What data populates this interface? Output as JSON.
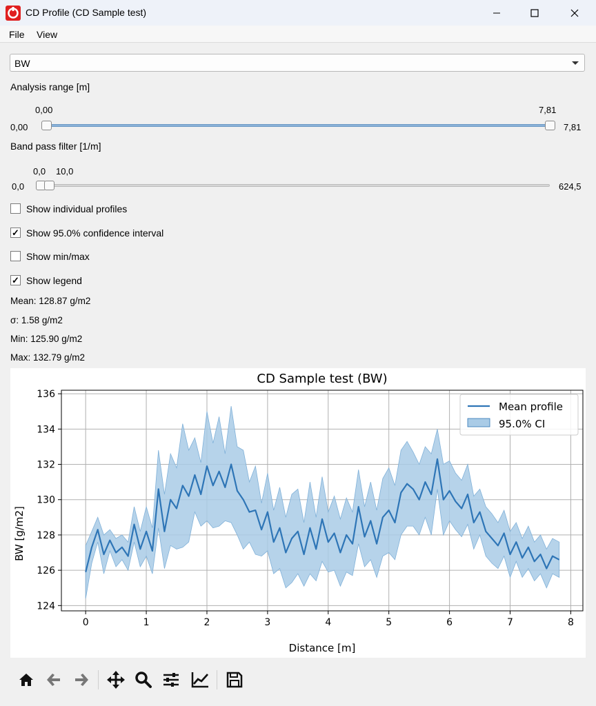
{
  "window": {
    "title": "CD Profile (CD Sample test)",
    "icon": "app-logo-icon"
  },
  "menu": {
    "items": [
      "File",
      "View"
    ]
  },
  "measurement_select": {
    "value": "BW"
  },
  "analysis_range": {
    "label": "Analysis range [m]",
    "min_label": "0,00",
    "max_label": "7,81",
    "low_value": "0,00",
    "high_value": "7,81",
    "low_fraction": 0.0,
    "high_fraction": 1.0
  },
  "band_pass": {
    "label": "Band pass filter [1/m]",
    "min_label": "0,0",
    "max_label": "624,5",
    "low_value": "0,0",
    "high_value": "10,0",
    "low_fraction": 0.0,
    "high_fraction": 0.016
  },
  "options": [
    {
      "label": "Show individual profiles",
      "checked": false
    },
    {
      "label": "Show 95.0% confidence interval",
      "checked": true
    },
    {
      "label": "Show min/max",
      "checked": false
    },
    {
      "label": "Show legend",
      "checked": true
    }
  ],
  "stats": {
    "mean": "Mean: 128.87 g/m2",
    "sigma": "σ: 1.58 g/m2",
    "min": "Min: 125.90 g/m2",
    "max": "Max: 132.79 g/m2"
  },
  "chart_data": {
    "type": "line",
    "title": "CD Sample test (BW)",
    "xlabel": "Distance [m]",
    "ylabel": "BW [g/m2]",
    "xlim": [
      -0.4,
      8.2
    ],
    "ylim": [
      123.7,
      136.2
    ],
    "xticks": [
      0,
      1,
      2,
      3,
      4,
      5,
      6,
      7,
      8
    ],
    "yticks": [
      124,
      126,
      128,
      130,
      132,
      134,
      136
    ],
    "grid": true,
    "legend_position": "top-right",
    "series": [
      {
        "name": "Mean profile",
        "color": "#2e75b6",
        "x": [
          0,
          0.1,
          0.2,
          0.3,
          0.4,
          0.5,
          0.6,
          0.7,
          0.8,
          0.9,
          1.0,
          1.1,
          1.2,
          1.3,
          1.4,
          1.5,
          1.6,
          1.7,
          1.8,
          1.9,
          2.0,
          2.1,
          2.2,
          2.3,
          2.4,
          2.5,
          2.6,
          2.7,
          2.8,
          2.9,
          3.0,
          3.1,
          3.2,
          3.3,
          3.4,
          3.5,
          3.6,
          3.7,
          3.8,
          3.9,
          4.0,
          4.1,
          4.2,
          4.3,
          4.4,
          4.5,
          4.6,
          4.7,
          4.8,
          4.9,
          5.0,
          5.1,
          5.2,
          5.3,
          5.4,
          5.5,
          5.6,
          5.7,
          5.8,
          5.9,
          6.0,
          6.1,
          6.2,
          6.3,
          6.4,
          6.5,
          6.6,
          6.7,
          6.8,
          6.9,
          7.0,
          7.1,
          7.2,
          7.3,
          7.4,
          7.5,
          7.6,
          7.7,
          7.81
        ],
        "y": [
          125.9,
          127.3,
          128.3,
          126.9,
          127.7,
          127.0,
          127.3,
          126.8,
          128.6,
          127.2,
          128.2,
          127.1,
          130.6,
          128.2,
          130.0,
          129.5,
          130.8,
          130.2,
          131.4,
          130.3,
          131.9,
          130.8,
          131.6,
          130.7,
          132.0,
          130.5,
          130.0,
          129.3,
          129.4,
          128.3,
          129.3,
          127.6,
          128.4,
          127.0,
          127.8,
          128.2,
          126.9,
          128.4,
          127.2,
          128.9,
          127.6,
          128.1,
          127.0,
          128.0,
          127.5,
          129.6,
          127.9,
          128.8,
          127.5,
          129.0,
          129.4,
          128.7,
          130.4,
          130.9,
          130.6,
          130.0,
          131.0,
          130.3,
          132.3,
          130.0,
          130.5,
          129.9,
          129.5,
          130.3,
          128.7,
          129.3,
          128.2,
          127.8,
          127.4,
          128.1,
          126.9,
          127.6,
          126.7,
          127.3,
          126.5,
          126.9,
          126.1,
          126.8,
          126.6
        ]
      },
      {
        "name": "95.0% CI",
        "color": "#9ec3e0",
        "x": [
          0,
          0.1,
          0.2,
          0.3,
          0.4,
          0.5,
          0.6,
          0.7,
          0.8,
          0.9,
          1.0,
          1.1,
          1.2,
          1.3,
          1.4,
          1.5,
          1.6,
          1.7,
          1.8,
          1.9,
          2.0,
          2.1,
          2.2,
          2.3,
          2.4,
          2.5,
          2.6,
          2.7,
          2.8,
          2.9,
          3.0,
          3.1,
          3.2,
          3.3,
          3.4,
          3.5,
          3.6,
          3.7,
          3.8,
          3.9,
          4.0,
          4.1,
          4.2,
          4.3,
          4.4,
          4.5,
          4.6,
          4.7,
          4.8,
          4.9,
          5.0,
          5.1,
          5.2,
          5.3,
          5.4,
          5.5,
          5.6,
          5.7,
          5.8,
          5.9,
          6.0,
          6.1,
          6.2,
          6.3,
          6.4,
          6.5,
          6.6,
          6.7,
          6.8,
          6.9,
          7.0,
          7.1,
          7.2,
          7.3,
          7.4,
          7.5,
          7.6,
          7.7,
          7.81
        ],
        "upper": [
          127.4,
          128.2,
          129.0,
          128.0,
          128.3,
          127.8,
          128.0,
          127.6,
          129.6,
          128.2,
          129.6,
          128.4,
          132.8,
          130.3,
          132.6,
          131.8,
          134.3,
          132.8,
          133.5,
          132.1,
          135.0,
          133.2,
          134.7,
          132.6,
          135.3,
          133.0,
          132.8,
          131.0,
          131.9,
          129.8,
          131.5,
          129.4,
          130.7,
          129.0,
          130.3,
          130.6,
          128.7,
          131.0,
          129.0,
          131.3,
          129.3,
          130.2,
          128.9,
          130.1,
          129.3,
          131.7,
          129.6,
          131.0,
          129.4,
          131.2,
          131.8,
          130.8,
          132.8,
          133.3,
          132.7,
          132.0,
          133.0,
          132.6,
          134.0,
          132.0,
          132.2,
          131.5,
          131.1,
          132.0,
          130.2,
          130.6,
          129.6,
          129.2,
          128.7,
          129.4,
          128.2,
          128.7,
          127.8,
          128.5,
          127.6,
          128.0,
          127.2,
          127.8,
          127.6
        ],
        "lower": [
          124.4,
          126.4,
          127.6,
          125.8,
          127.1,
          126.2,
          126.6,
          126.0,
          127.6,
          126.2,
          126.8,
          125.8,
          128.4,
          126.1,
          127.4,
          127.2,
          127.3,
          127.6,
          129.3,
          128.5,
          128.8,
          128.4,
          128.5,
          128.8,
          128.7,
          128.0,
          127.2,
          127.6,
          126.9,
          126.8,
          127.1,
          125.8,
          126.1,
          125.0,
          125.3,
          125.8,
          125.1,
          125.8,
          125.4,
          126.5,
          125.9,
          126.0,
          125.1,
          125.9,
          125.7,
          127.5,
          126.2,
          126.6,
          125.6,
          126.8,
          127.0,
          126.6,
          128.0,
          128.5,
          128.5,
          128.0,
          129.0,
          128.0,
          130.6,
          128.0,
          128.8,
          128.3,
          127.9,
          128.6,
          127.2,
          128.0,
          126.8,
          126.4,
          126.1,
          126.8,
          125.6,
          126.5,
          125.6,
          126.1,
          125.4,
          125.8,
          125.0,
          125.8,
          125.6
        ]
      }
    ]
  },
  "toolbar": {
    "buttons": [
      "home-icon",
      "back-icon",
      "forward-icon",
      "pan-icon",
      "zoom-icon",
      "configure-subplots-icon",
      "edit-axis-icon",
      "save-icon"
    ]
  }
}
